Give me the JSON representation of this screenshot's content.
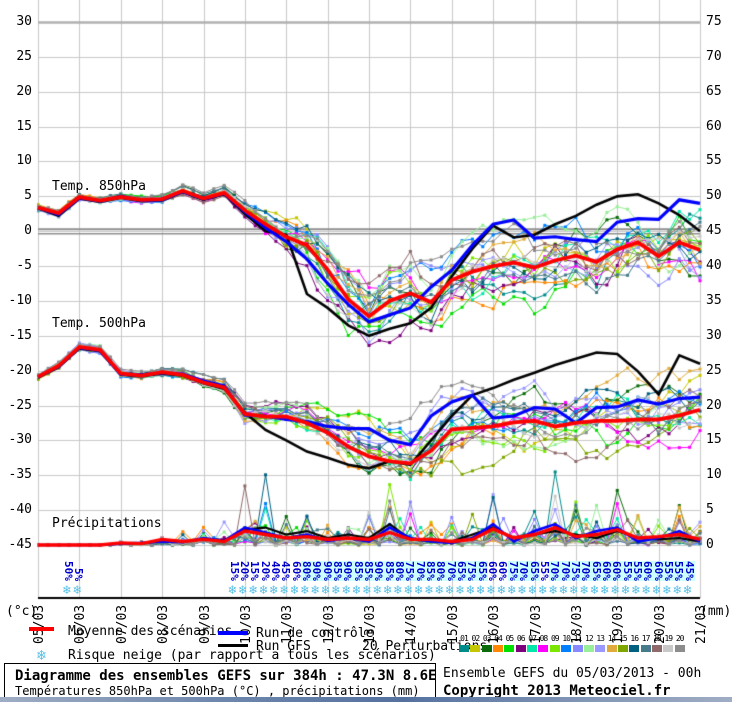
{
  "axes": {
    "left_unit": "(°c)",
    "right_unit": "(mm)",
    "left_ticks": [
      30,
      25,
      20,
      15,
      10,
      5,
      0,
      -5,
      -10,
      -15,
      -20,
      -25,
      -30,
      -35,
      -40,
      -45
    ],
    "right_ticks": [
      75,
      70,
      65,
      60,
      55,
      50,
      45,
      40,
      35,
      30,
      25,
      20,
      15,
      10,
      5,
      0
    ],
    "dates": [
      "05/03",
      "06/03",
      "07/03",
      "08/03",
      "09/03",
      "10/03",
      "11/03",
      "12/03",
      "13/03",
      "14/03",
      "15/03",
      "16/03",
      "17/03",
      "18/03",
      "19/03",
      "20/03",
      "21/03"
    ]
  },
  "section_labels": {
    "t850": "Temp. 850hPa",
    "t500": "Temp. 500hPa",
    "precip": "Précipitations"
  },
  "legend": {
    "mean_label": "Moyenne des scénarios",
    "control_label": "Run de contrôle",
    "gfs_label": "Run GFS",
    "snow_label": "Risque neige (par rapport a tous les scénarios)",
    "perturbations_label": "20 Perturbations",
    "perturbation_numbers": [
      "01",
      "02",
      "03",
      "04",
      "05",
      "06",
      "07",
      "08",
      "09",
      "10",
      "11",
      "12",
      "13",
      "14",
      "15",
      "16",
      "17",
      "18",
      "19",
      "20"
    ],
    "perturbation_colors": [
      "#008b8b",
      "#c6c600",
      "#0a6b0a",
      "#ff8800",
      "#00e000",
      "#7d007d",
      "#00e8a8",
      "#ff00ff",
      "#7ce600",
      "#0080ff",
      "#8888ff",
      "#99ee99",
      "#9999ff",
      "#e0aa3c",
      "#7fa600",
      "#00607f",
      "#477a8a",
      "#8f6a6a",
      "#c8c8c8",
      "#8c8c8c"
    ]
  },
  "snow_risk": {
    "early": [
      {
        "hour": 18,
        "label": "50%",
        "highlight": false
      },
      {
        "hour": 24,
        "label": "5%",
        "highlight": false
      }
    ],
    "run_start_hour": 114,
    "run_step_hours": 6,
    "values": [
      "15%",
      "20%",
      "15%",
      "20%",
      "40%",
      "45%",
      "60%",
      "80%",
      "90%",
      "90%",
      "85%",
      "90%",
      "85%",
      "85%",
      "90%",
      "85%",
      "80%",
      "75%",
      "70%",
      "85%",
      "80%",
      "70%",
      "65%",
      "75%",
      "65%",
      "60%",
      "60%",
      "75%",
      "70%",
      "65%",
      "55%",
      "70%",
      "70%",
      "75%",
      "70%",
      "65%",
      "60%",
      "60%",
      "55%",
      "55%",
      "60%",
      "60%",
      "55%",
      "55%",
      "45%"
    ],
    "highlight": [
      false,
      false,
      false,
      false,
      false,
      false,
      false,
      true,
      true,
      true,
      true,
      true,
      true,
      true,
      true,
      true,
      true,
      true,
      true,
      true,
      true,
      true,
      true,
      true,
      true,
      false,
      false,
      true,
      true,
      true,
      false,
      true,
      true,
      true,
      true,
      true,
      true,
      true,
      true,
      true,
      true,
      true,
      true,
      true,
      true
    ]
  },
  "title_box": {
    "line1": "Diagramme des ensembles GEFS sur 384h : 47.3N 8.6E",
    "line2": "Températures 850hPa et 500hPa (°C) , précipitations (mm)"
  },
  "info_box": {
    "line1": "Ensemble GEFS du 05/03/2013 - 00h",
    "line2": "Copyright 2013 Meteociel.fr"
  },
  "colors": {
    "mean": "#ff0000",
    "control": "#0000ff",
    "gfs": "#000000",
    "grid": "#c8c8c8",
    "grid_strong": "#b0b0b0",
    "zero_line": "#8f8f8f",
    "percent_text": "#0000cc",
    "percent_highlight": "#ccffff",
    "snowflake": "#55bfe5"
  },
  "chart_data": {
    "type": "line",
    "title": "Diagramme des ensembles GEFS sur 384h : 47.3N 8.6E",
    "x_start": "05/03 00h",
    "x_end": "21/03 00h",
    "x_step_hours": 12,
    "x_total_hours": 384,
    "ylabel_left": "Température (°c)",
    "ylabel_right": "Précipitations (mm)",
    "ylim_left": [
      -45,
      30
    ],
    "ylim_right": [
      0,
      75
    ],
    "grid": true,
    "series": [
      {
        "name": "Temp. 850hPa - Moyenne des scénarios",
        "color": "#ff0000",
        "values": [
          3.4,
          2.6,
          4.9,
          4.4,
          4.9,
          4.5,
          4.6,
          5.8,
          4.7,
          5.5,
          3.0,
          1.0,
          -0.8,
          -2.0,
          -5.5,
          -9.8,
          -12.2,
          -10.0,
          -8.9,
          -10.2,
          -7.0,
          -5.8,
          -5.0,
          -4.5,
          -5.2,
          -4.2,
          -3.5,
          -4.4,
          -2.6,
          -1.6,
          -3.6,
          -1.6,
          -2.7
        ]
      },
      {
        "name": "Temp. 850hPa - Run de contrôle",
        "color": "#0000ff",
        "values": [
          3.4,
          2.4,
          4.8,
          4.3,
          5.0,
          4.4,
          4.5,
          5.7,
          4.6,
          5.4,
          2.8,
          0.5,
          -1.5,
          -4.0,
          -7.5,
          -10.5,
          -13.0,
          -12.0,
          -11.0,
          -8.0,
          -5.6,
          -2.0,
          1.0,
          1.6,
          -1.0,
          -0.8,
          -1.2,
          -1.5,
          1.3,
          1.8,
          1.7,
          4.5,
          4.0
        ]
      },
      {
        "name": "Temp. 850hPa - Run GFS",
        "color": "#000000",
        "values": [
          3.3,
          2.2,
          4.7,
          4.2,
          4.8,
          4.3,
          4.4,
          5.6,
          4.5,
          5.3,
          2.5,
          0.0,
          -0.5,
          -9.0,
          -11.0,
          -13.5,
          -15.0,
          -14.0,
          -13.2,
          -11.0,
          -6.5,
          -2.5,
          0.8,
          -0.9,
          -0.5,
          1.0,
          2.2,
          3.8,
          5.0,
          5.3,
          4.0,
          2.3,
          0.0
        ]
      },
      {
        "name": "Temp. 500hPa - Moyenne des scénarios",
        "color": "#ff0000",
        "values": [
          -20.9,
          -19.3,
          -16.6,
          -17.0,
          -20.4,
          -20.7,
          -20.2,
          -20.6,
          -21.7,
          -22.4,
          -26.2,
          -26.6,
          -26.6,
          -27.5,
          -28.9,
          -30.9,
          -32.3,
          -33.0,
          -33.3,
          -31.5,
          -28.4,
          -28.2,
          -28.0,
          -27.4,
          -27.2,
          -28.0,
          -27.5,
          -27.2,
          -27.2,
          -27.0,
          -27.0,
          -26.4,
          -25.6
        ]
      },
      {
        "name": "Temp. 500hPa - Run de contrôle",
        "color": "#0000ff",
        "values": [
          -20.9,
          -19.4,
          -16.7,
          -17.1,
          -20.5,
          -20.6,
          -20.3,
          -20.5,
          -21.5,
          -22.2,
          -26.4,
          -26.5,
          -27.0,
          -27.3,
          -28.0,
          -28.3,
          -28.3,
          -30.0,
          -30.6,
          -26.5,
          -24.5,
          -23.5,
          -26.8,
          -26.5,
          -25.3,
          -25.5,
          -27.5,
          -25.3,
          -25.2,
          -24.2,
          -24.8,
          -24.0,
          -23.8
        ]
      },
      {
        "name": "Temp. 500hPa - Run GFS",
        "color": "#000000",
        "values": [
          -21.0,
          -19.5,
          -16.8,
          -17.2,
          -20.6,
          -20.8,
          -20.4,
          -20.7,
          -21.8,
          -22.6,
          -26.0,
          -28.5,
          -30.0,
          -31.6,
          -32.5,
          -33.5,
          -34.0,
          -33.0,
          -33.5,
          -30.0,
          -26.5,
          -23.5,
          -22.5,
          -21.3,
          -20.3,
          -19.2,
          -18.3,
          -17.4,
          -17.6,
          -20.1,
          -23.4,
          -17.8,
          -19.0
        ]
      },
      {
        "name": "Précipitations - Moyenne des scénarios",
        "color": "#ff0000",
        "values": [
          0,
          0,
          0,
          0,
          0.3,
          0.2,
          0.8,
          0.5,
          0.8,
          0.5,
          2.0,
          1.5,
          1.0,
          1.2,
          0.8,
          1.0,
          0.8,
          1.8,
          0.8,
          0.8,
          0.5,
          0.8,
          2.3,
          1.0,
          1.5,
          2.5,
          1.2,
          1.5,
          2.2,
          1.0,
          1.2,
          1.5,
          0.8
        ]
      },
      {
        "name": "Précipitations - Run de contrôle",
        "color": "#0000ff",
        "values": [
          0,
          0,
          0,
          0,
          0.2,
          0.3,
          0.5,
          0.4,
          1.0,
          0.6,
          2.5,
          1.8,
          1.0,
          1.5,
          0.6,
          1.0,
          0.5,
          2.5,
          1.0,
          0.5,
          0.3,
          1.0,
          3.0,
          0.5,
          2.0,
          3.0,
          1.0,
          2.0,
          2.5,
          0.5,
          1.0,
          2.0,
          0.5
        ]
      },
      {
        "name": "Précipitations - Run GFS",
        "color": "#000000",
        "values": [
          0,
          0,
          0,
          0,
          0.3,
          0.2,
          0.6,
          0.5,
          0.8,
          0.7,
          2.2,
          2.5,
          1.5,
          2.0,
          1.0,
          1.5,
          1.0,
          3.0,
          0.8,
          0.6,
          0.5,
          1.5,
          2.5,
          1.0,
          1.5,
          2.0,
          1.5,
          1.0,
          2.0,
          1.0,
          0.8,
          1.0,
          0.5
        ]
      }
    ],
    "ensemble": {
      "members": 20,
      "seed": 7,
      "spread_850": [
        0.5,
        0.6,
        0.5,
        0.5,
        0.5,
        0.6,
        0.7,
        0.7,
        0.8,
        1.0,
        1.5,
        2.5,
        3.5,
        4.0,
        4.5,
        5.0,
        5.0,
        5.0,
        5.0,
        5.0,
        5.0,
        5.2,
        5.2,
        5.2,
        5.2,
        5.4,
        5.4,
        5.6,
        5.6,
        5.8,
        5.8,
        6.0,
        6.0
      ],
      "spread_500": [
        0.4,
        0.5,
        0.5,
        0.6,
        0.6,
        0.6,
        0.7,
        0.8,
        1.0,
        1.2,
        1.8,
        2.2,
        2.5,
        3.0,
        3.5,
        3.8,
        4.0,
        4.2,
        4.5,
        4.5,
        4.5,
        4.5,
        4.5,
        4.7,
        4.7,
        4.8,
        4.8,
        5.0,
        5.0,
        5.0,
        5.0,
        5.0,
        5.0
      ],
      "precip_amp": [
        0,
        0,
        0,
        0,
        0.5,
        1,
        2,
        2,
        2,
        3,
        8,
        10,
        5,
        4,
        4,
        6,
        5,
        9,
        6,
        5,
        4,
        6,
        8,
        5,
        6,
        8,
        6,
        6,
        8,
        5,
        5,
        6,
        4
      ]
    }
  }
}
